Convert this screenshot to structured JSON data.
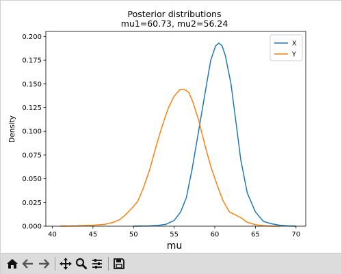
{
  "chart_data": {
    "type": "line",
    "title": "Posterior distributions",
    "subtitle": "mu1=60.73,  mu2=56.24",
    "xlabel": "mu",
    "ylabel": "Density",
    "xlim": [
      39.2,
      71.2
    ],
    "ylim": [
      0,
      0.2053
    ],
    "xticks": [
      "40",
      "45",
      "50",
      "55",
      "60",
      "65",
      "70"
    ],
    "xtick_values": [
      40,
      45,
      50,
      55,
      60,
      65,
      70
    ],
    "yticks": [
      "0.000",
      "0.025",
      "0.050",
      "0.075",
      "0.100",
      "0.125",
      "0.150",
      "0.175",
      "0.200"
    ],
    "ytick_values": [
      0,
      0.025,
      0.05,
      0.075,
      0.1,
      0.125,
      0.15,
      0.175,
      0.2
    ],
    "legend_position": "top-right",
    "grid": false,
    "series": [
      {
        "name": "X",
        "color": "#1f77b4",
        "x": [
          50,
          52,
          53,
          54,
          55,
          55.8,
          56.5,
          57.2,
          58,
          58.8,
          59.5,
          60.1,
          60.5,
          60.9,
          61.3,
          62,
          62.6,
          63.2,
          64,
          65,
          66,
          67,
          68,
          69,
          70
        ],
        "y": [
          0,
          0.0003,
          0.0008,
          0.002,
          0.006,
          0.015,
          0.03,
          0.06,
          0.1,
          0.14,
          0.175,
          0.19,
          0.193,
          0.19,
          0.18,
          0.15,
          0.11,
          0.07,
          0.035,
          0.015,
          0.005,
          0.0025,
          0.001,
          0.0003,
          0
        ]
      },
      {
        "name": "Y",
        "color": "#ff7f0e",
        "x": [
          41,
          43,
          45,
          46.5,
          47.5,
          48.3,
          49,
          49.8,
          50.5,
          51.2,
          52,
          52.8,
          53.5,
          54.3,
          55,
          55.7,
          56.3,
          56.8,
          57.3,
          58,
          58.8,
          59.5,
          60.3,
          61,
          61.8,
          62.5,
          63.2,
          64,
          65,
          66,
          67,
          68
        ],
        "y": [
          0,
          0.0003,
          0.001,
          0.002,
          0.004,
          0.007,
          0.012,
          0.019,
          0.026,
          0.04,
          0.06,
          0.085,
          0.105,
          0.125,
          0.137,
          0.144,
          0.144,
          0.141,
          0.131,
          0.112,
          0.085,
          0.063,
          0.043,
          0.027,
          0.015,
          0.012,
          0.009,
          0.004,
          0.0015,
          0.0005,
          0.0001,
          0
        ]
      }
    ]
  },
  "toolbar": {
    "items": [
      "home-icon",
      "back-icon",
      "forward-icon",
      "pan-icon",
      "zoom-icon",
      "configure-icon",
      "save-icon"
    ]
  }
}
